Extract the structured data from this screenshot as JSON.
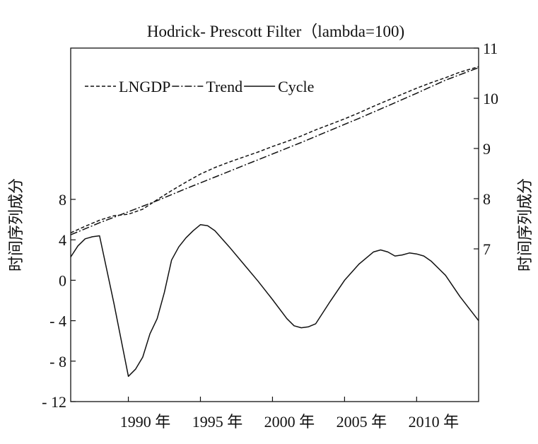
{
  "chart_data": {
    "type": "line",
    "title": "Hodrick- Prescott Filter（lambda=100)",
    "xlabel": "",
    "ylabel_left": "时间序列成分",
    "ylabel_right": "时间序列成分",
    "x_ticks": [
      "1990 年",
      "1995 年",
      "2000 年",
      "2005 年",
      "2010 年"
    ],
    "x_range": [
      1986,
      2014.3
    ],
    "y_left_ticks": [
      "8",
      "4",
      "0",
      "- 4",
      "- 8",
      "- 12"
    ],
    "y_left_range": [
      -12,
      8
    ],
    "y_right_ticks": [
      "11",
      "10",
      "9",
      "8",
      "7"
    ],
    "y_right_range": [
      7,
      11
    ],
    "legend": {
      "placement": "top-left",
      "items": [
        "LNGDP",
        "Trend",
        "Cycle"
      ]
    },
    "series": [
      {
        "name": "LNGDP",
        "axis": "right",
        "style": "dashed",
        "x": [
          1986,
          1987,
          1988,
          1989,
          1990,
          1991,
          1992,
          1993,
          1994,
          1995,
          1996,
          1997,
          1998,
          1999,
          2000,
          2001,
          2002,
          2003,
          2004,
          2005,
          2006,
          2007,
          2008,
          2009,
          2010,
          2011,
          2012,
          2013,
          2014.3
        ],
        "y": [
          7.32,
          7.45,
          7.57,
          7.66,
          7.69,
          7.79,
          7.98,
          8.16,
          8.33,
          8.49,
          8.62,
          8.73,
          8.83,
          8.93,
          9.04,
          9.14,
          9.25,
          9.37,
          9.48,
          9.59,
          9.71,
          9.84,
          9.96,
          10.08,
          10.2,
          10.31,
          10.41,
          10.52,
          10.63
        ]
      },
      {
        "name": "Trend",
        "axis": "right",
        "style": "dash-dot",
        "x": [
          1986,
          1988,
          1990,
          1992,
          1994,
          1996,
          1998,
          2000,
          2002,
          2004,
          2006,
          2008,
          2010,
          2012,
          2014.3
        ],
        "y": [
          7.28,
          7.52,
          7.74,
          7.96,
          8.2,
          8.43,
          8.66,
          8.89,
          9.12,
          9.36,
          9.6,
          9.85,
          10.1,
          10.36,
          10.61
        ]
      },
      {
        "name": "Cycle",
        "axis": "left",
        "style": "solid",
        "x": [
          1986,
          1986.5,
          1987,
          1987.5,
          1988,
          1989,
          1990,
          1990.5,
          1991,
          1991.5,
          1992,
          1992.5,
          1993,
          1993.5,
          1994,
          1994.5,
          1995,
          1995.5,
          1996,
          1997,
          1998,
          1999,
          2000,
          2001,
          2001.5,
          2002,
          2002.5,
          2003,
          2004,
          2005,
          2006,
          2007,
          2007.5,
          2008,
          2008.5,
          2009,
          2009.5,
          2010,
          2010.5,
          2011,
          2012,
          2013,
          2014.3
        ],
        "y": [
          2.3,
          3.4,
          4.1,
          4.3,
          4.4,
          -2.3,
          -9.5,
          -8.8,
          -7.6,
          -5.3,
          -3.8,
          -1.2,
          2.0,
          3.3,
          4.2,
          4.9,
          5.5,
          5.4,
          4.9,
          3.3,
          1.6,
          -0.1,
          -1.9,
          -3.8,
          -4.5,
          -4.7,
          -4.6,
          -4.3,
          -2.1,
          0.0,
          1.6,
          2.8,
          3.0,
          2.8,
          2.4,
          2.5,
          2.7,
          2.6,
          2.4,
          1.9,
          0.5,
          -1.6,
          -4.0
        ]
      }
    ]
  }
}
